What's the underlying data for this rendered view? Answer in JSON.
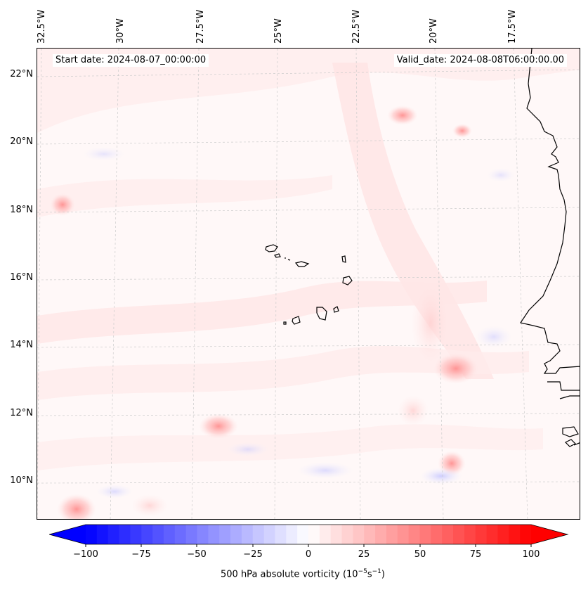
{
  "map": {
    "start_label": "Start date: 2024-08-07_00:00:00",
    "valid_label": "Valid_date: 2024-08-08T06:00:00.00",
    "longitude_labels": [
      "32.5°W",
      "30°W",
      "27.5°W",
      "25°W",
      "22.5°W",
      "20°W",
      "17.5°W"
    ],
    "latitude_labels": [
      "22°N",
      "20°N",
      "18°N",
      "16°N",
      "14°N",
      "12°N",
      "10°N"
    ],
    "field": "500 hPa absolute vorticity",
    "colormap": "bwr"
  },
  "colorbar": {
    "tick_labels": [
      "−100",
      "−75",
      "−50",
      "−25",
      "0",
      "25",
      "50",
      "75",
      "100"
    ],
    "label_prefix": "500 hPa absolute vorticity (10",
    "label_exp1": "−5",
    "label_mid": "s",
    "label_exp2": "−1",
    "label_suffix": ")",
    "min_color": "#0000ff",
    "mid_color": "#ffffff",
    "max_color": "#ff0000"
  }
}
